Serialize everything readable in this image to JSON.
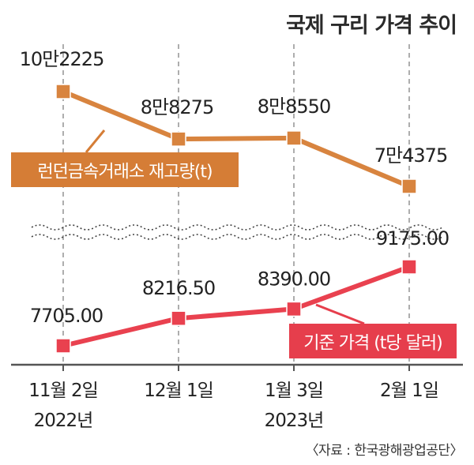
{
  "title": "국제 구리 가격 추이",
  "source": "〈자료 : 한국광해광업공단〉",
  "colors": {
    "inventory": "#d8843f",
    "inventory_label_bg": "#d57d36",
    "price": "#e9414f",
    "price_label_bg": "#e63e4c",
    "grid": "#777777",
    "text": "#222222"
  },
  "chart_data": {
    "type": "line",
    "categories": [
      {
        "date": "11월 2일",
        "year": "2022년"
      },
      {
        "date": "12월 1일",
        "year": ""
      },
      {
        "date": "1월 3일",
        "year": "2023년"
      },
      {
        "date": "2월 1일",
        "year": ""
      }
    ],
    "series": [
      {
        "name": "런던금속거래소 재고량(t)",
        "values": [
          102225,
          88275,
          88550,
          74375
        ],
        "labels": [
          "10만2225",
          "8만8275",
          "8만8550",
          "7만4375"
        ]
      },
      {
        "name": "기준 가격 (t당 달러)",
        "values": [
          7705.0,
          8216.5,
          8390.0,
          9175.0
        ],
        "labels": [
          "7705.00",
          "8216.50",
          "8390.00",
          "9175.00"
        ]
      }
    ],
    "axis_break": true,
    "grid": "vertical dashed"
  }
}
